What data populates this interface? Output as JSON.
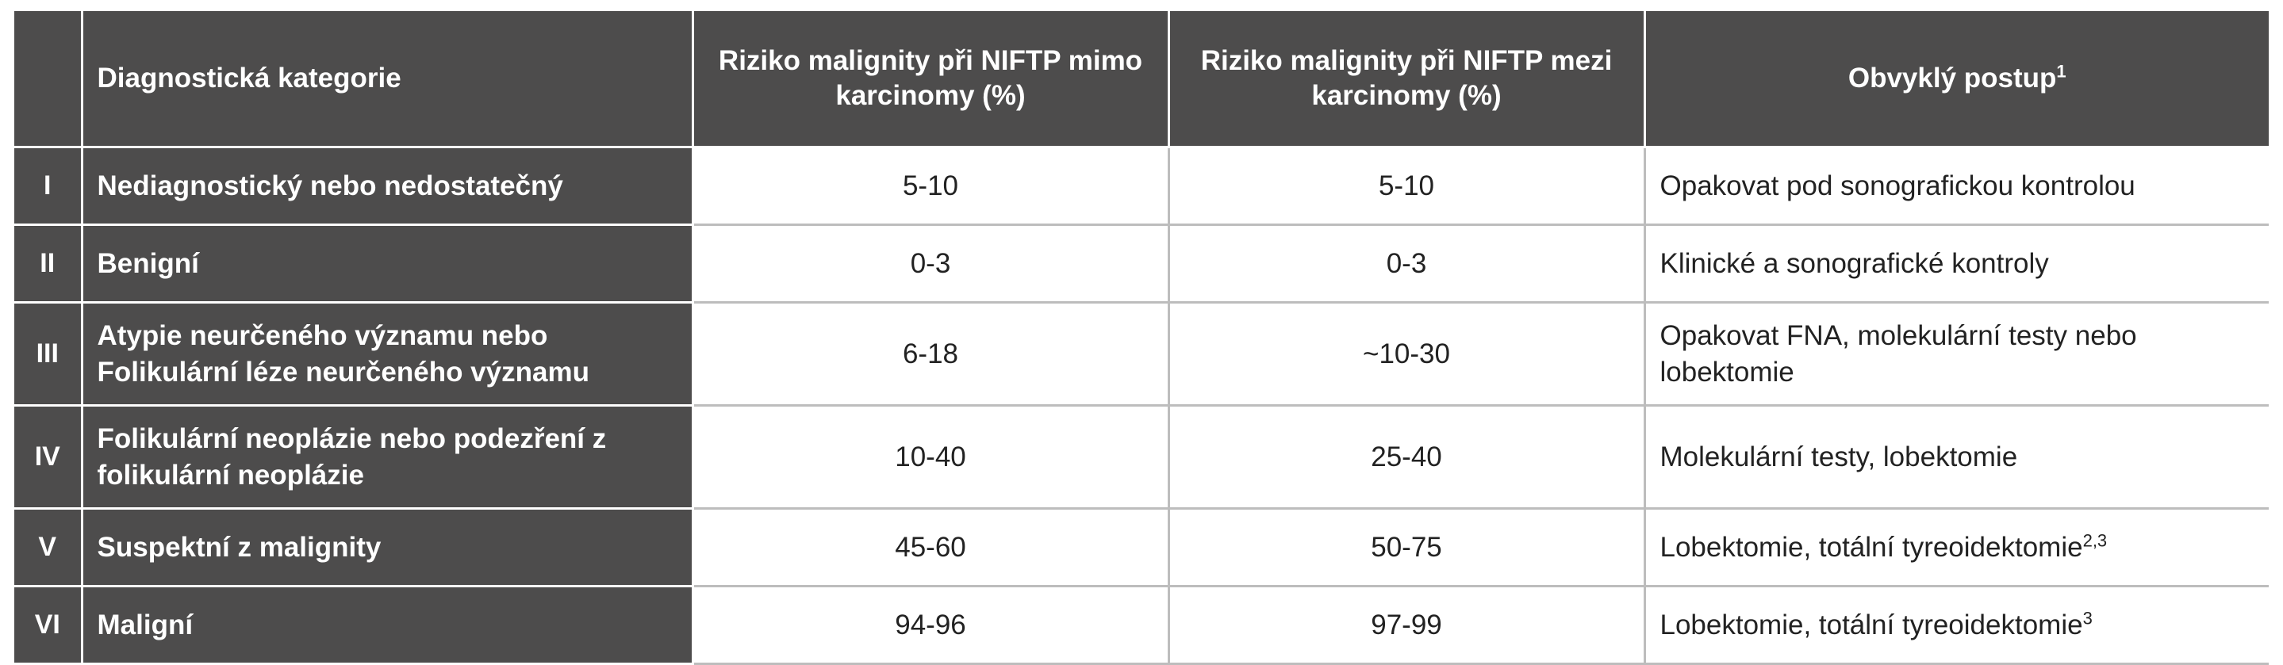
{
  "header": {
    "num": "",
    "category": "Diagnostická kategorie",
    "risk_excl": "Riziko malignity při NIFTP mimo karcinomy  (%)",
    "risk_incl": "Riziko malignity při NIFTP mezi karcinomy  (%)",
    "procedure": "Obvyklý postup",
    "procedure_sup": "1"
  },
  "rows": [
    {
      "num": "I",
      "category": "Nediagnostický nebo nedostatečný",
      "risk_excl": "5-10",
      "risk_incl": "5-10",
      "procedure": "Opakovat pod sonografickou  kontrolou",
      "procedure_sup": ""
    },
    {
      "num": "II",
      "category": "Benigní",
      "risk_excl": "0-3",
      "risk_incl": "0-3",
      "procedure": "Klinické a sonografické kontroly",
      "procedure_sup": ""
    },
    {
      "num": "III",
      "category": "Atypie neurčeného významu nebo Folikulární léze neurčeného významu",
      "risk_excl": "6-18",
      "risk_incl": "~10-30",
      "procedure": "Opakovat FNA, molekulární testy nebo lobektomie",
      "procedure_sup": ""
    },
    {
      "num": "IV",
      "category": "Folikulární neoplázie nebo podezření z folikulární neoplázie",
      "risk_excl": "10-40",
      "risk_incl": "25-40",
      "procedure": "Molekulární testy, lobektomie",
      "procedure_sup": ""
    },
    {
      "num": "V",
      "category": "Suspektní z malignity",
      "risk_excl": "45-60",
      "risk_incl": "50-75",
      "procedure": "Lobektomie, totální tyreoidektomie",
      "procedure_sup": "2,3"
    },
    {
      "num": "VI",
      "category": "Maligní",
      "risk_excl": "94-96",
      "risk_incl": "97-99",
      "procedure": "Lobektomie, totální tyreoidektomie",
      "procedure_sup": "3"
    }
  ]
}
